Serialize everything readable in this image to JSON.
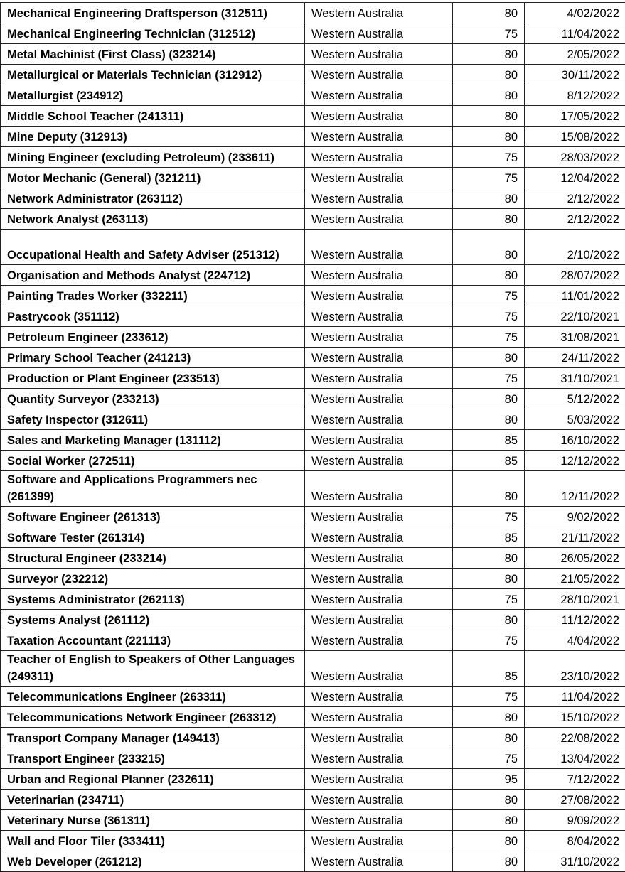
{
  "table": {
    "rows": [
      {
        "occupation": "Mechanical Engineering Draftsperson (312511)",
        "state": "Western Australia",
        "points": "80",
        "date": "4/02/2022"
      },
      {
        "occupation": "Mechanical Engineering Technician (312512)",
        "state": "Western Australia",
        "points": "75",
        "date": "11/04/2022"
      },
      {
        "occupation": "Metal Machinist (First Class) (323214)",
        "state": "Western Australia",
        "points": "80",
        "date": "2/05/2022"
      },
      {
        "occupation": "Metallurgical or Materials Technician (312912)",
        "state": "Western Australia",
        "points": "80",
        "date": "30/11/2022"
      },
      {
        "occupation": "Metallurgist (234912)",
        "state": "Western Australia",
        "points": "80",
        "date": "8/12/2022"
      },
      {
        "occupation": "Middle School Teacher (241311)",
        "state": "Western Australia",
        "points": "80",
        "date": "17/05/2022"
      },
      {
        "occupation": "Mine Deputy (312913)",
        "state": "Western Australia",
        "points": "80",
        "date": "15/08/2022"
      },
      {
        "occupation": "Mining Engineer (excluding Petroleum) (233611)",
        "state": "Western Australia",
        "points": "75",
        "date": "28/03/2022"
      },
      {
        "occupation": "Motor Mechanic (General) (321211)",
        "state": "Western Australia",
        "points": "75",
        "date": "12/04/2022"
      },
      {
        "occupation": "Network Administrator (263112)",
        "state": "Western Australia",
        "points": "80",
        "date": "2/12/2022"
      },
      {
        "occupation": "Network Analyst (263113)",
        "state": "Western Australia",
        "points": "80",
        "date": "2/12/2022"
      },
      {
        "occupation": "Occupational Health and Safety Adviser (251312)",
        "state": "Western Australia",
        "points": "80",
        "date": "2/10/2022",
        "wrap": true
      },
      {
        "occupation": "Organisation and Methods Analyst (224712)",
        "state": "Western Australia",
        "points": "80",
        "date": "28/07/2022"
      },
      {
        "occupation": "Painting Trades Worker (332211)",
        "state": "Western Australia",
        "points": "75",
        "date": "11/01/2022"
      },
      {
        "occupation": "Pastrycook (351112)",
        "state": "Western Australia",
        "points": "75",
        "date": "22/10/2021"
      },
      {
        "occupation": "Petroleum Engineer (233612)",
        "state": "Western Australia",
        "points": "75",
        "date": "31/08/2021"
      },
      {
        "occupation": "Primary School Teacher (241213)",
        "state": "Western Australia",
        "points": "80",
        "date": "24/11/2022"
      },
      {
        "occupation": "Production or Plant Engineer (233513)",
        "state": "Western Australia",
        "points": "75",
        "date": "31/10/2021"
      },
      {
        "occupation": "Quantity Surveyor (233213)",
        "state": "Western Australia",
        "points": "80",
        "date": "5/12/2022"
      },
      {
        "occupation": "Safety Inspector (312611)",
        "state": "Western Australia",
        "points": "80",
        "date": "5/03/2022"
      },
      {
        "occupation": "Sales and Marketing Manager (131112)",
        "state": "Western Australia",
        "points": "85",
        "date": "16/10/2022"
      },
      {
        "occupation": "Social Worker (272511)",
        "state": "Western Australia",
        "points": "85",
        "date": "12/12/2022"
      },
      {
        "occupation": "Software and Applications Programmers nec (261399)",
        "state": "Western Australia",
        "points": "80",
        "date": "12/11/2022",
        "wrap": true
      },
      {
        "occupation": "Software Engineer (261313)",
        "state": "Western Australia",
        "points": "75",
        "date": "9/02/2022"
      },
      {
        "occupation": "Software Tester (261314)",
        "state": "Western Australia",
        "points": "85",
        "date": "21/11/2022"
      },
      {
        "occupation": "Structural Engineer (233214)",
        "state": "Western Australia",
        "points": "80",
        "date": "26/05/2022"
      },
      {
        "occupation": "Surveyor (232212)",
        "state": "Western Australia",
        "points": "80",
        "date": "21/05/2022"
      },
      {
        "occupation": "Systems Administrator (262113)",
        "state": "Western Australia",
        "points": "75",
        "date": "28/10/2021"
      },
      {
        "occupation": "Systems Analyst (261112)",
        "state": "Western Australia",
        "points": "80",
        "date": "11/12/2022"
      },
      {
        "occupation": "Taxation Accountant (221113)",
        "state": "Western Australia",
        "points": "75",
        "date": "4/04/2022"
      },
      {
        "occupation": "Teacher of English to Speakers of Other Languages (249311)",
        "state": "Western Australia",
        "points": "85",
        "date": "23/10/2022",
        "wrap": true
      },
      {
        "occupation": "Telecommunications Engineer (263311)",
        "state": "Western Australia",
        "points": "75",
        "date": "11/04/2022"
      },
      {
        "occupation": "Telecommunications Network Engineer (263312)",
        "state": "Western Australia",
        "points": "80",
        "date": "15/10/2022"
      },
      {
        "occupation": "Transport Company Manager (149413)",
        "state": "Western Australia",
        "points": "80",
        "date": "22/08/2022"
      },
      {
        "occupation": "Transport Engineer (233215)",
        "state": "Western Australia",
        "points": "75",
        "date": "13/04/2022"
      },
      {
        "occupation": "Urban and Regional Planner (232611)",
        "state": "Western Australia",
        "points": "95",
        "date": "7/12/2022"
      },
      {
        "occupation": "Veterinarian (234711)",
        "state": "Western Australia",
        "points": "80",
        "date": "27/08/2022"
      },
      {
        "occupation": "Veterinary Nurse (361311)",
        "state": "Western Australia",
        "points": "80",
        "date": "9/09/2022"
      },
      {
        "occupation": "Wall and Floor Tiler (333411)",
        "state": "Western Australia",
        "points": "80",
        "date": "8/04/2022"
      },
      {
        "occupation": "Web Developer (261212)",
        "state": "Western Australia",
        "points": "80",
        "date": "31/10/2022"
      }
    ]
  }
}
